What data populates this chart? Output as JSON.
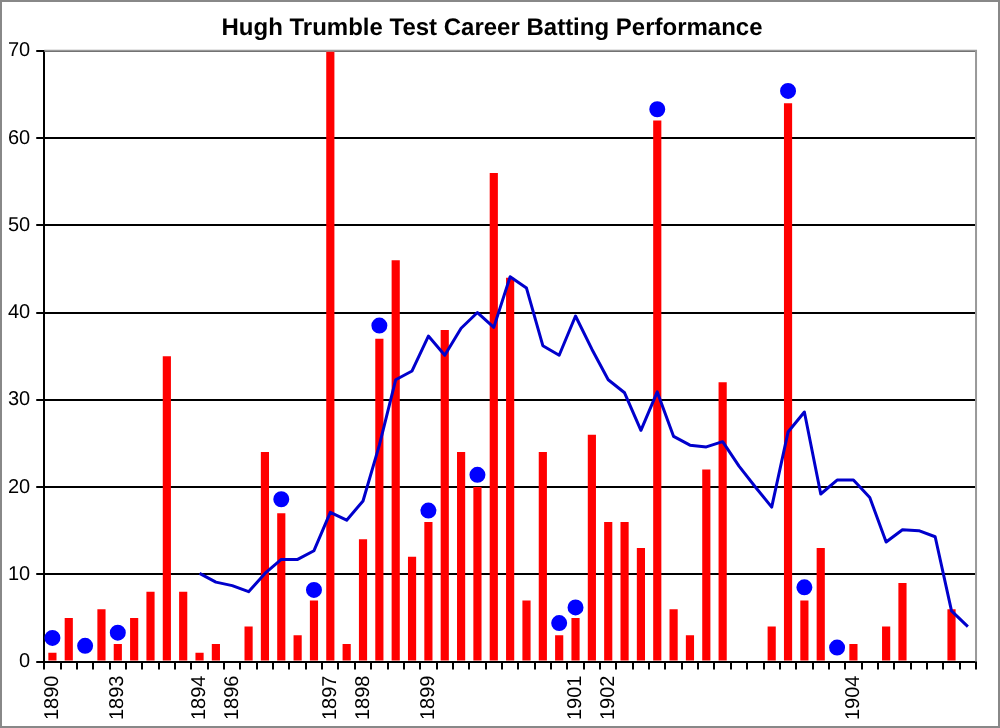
{
  "chart_data": {
    "type": "bar",
    "title": "Hugh Trumble Test Career Batting Performance",
    "categories": [
      "1890",
      null,
      null,
      null,
      "1893",
      null,
      null,
      null,
      null,
      "1894",
      null,
      "1896",
      null,
      null,
      null,
      null,
      null,
      "1897",
      null,
      "1898",
      null,
      null,
      null,
      "1899",
      null,
      null,
      null,
      null,
      null,
      null,
      null,
      null,
      "1901",
      null,
      "1902",
      null,
      null,
      null,
      null,
      null,
      null,
      null,
      null,
      null,
      null,
      null,
      null,
      null,
      null,
      "1904",
      null,
      null,
      null,
      null,
      null,
      null,
      null
    ],
    "ylim": [
      0,
      70
    ],
    "yticks": [
      0,
      10,
      20,
      30,
      40,
      50,
      60,
      70
    ],
    "grid": "y",
    "series": [
      {
        "color": "#ff0000",
        "values": [
          1,
          5,
          null,
          6,
          2,
          5,
          8,
          35,
          8,
          1,
          2,
          null,
          4,
          24,
          17,
          3,
          7,
          70,
          2,
          14,
          37,
          46,
          12,
          16,
          38,
          24,
          20,
          56,
          44,
          7,
          24,
          3,
          5,
          26,
          16,
          16,
          13,
          62,
          6,
          3,
          22,
          32,
          null,
          null,
          4,
          64,
          7,
          13,
          null,
          2,
          null,
          4,
          9,
          null,
          null,
          6,
          null
        ]
      },
      {
        "type": "line",
        "color": "#0000cc",
        "marker": "none",
        "values": [
          null,
          null,
          null,
          null,
          null,
          null,
          null,
          null,
          null,
          10.1,
          9.1,
          8.7,
          8,
          10.1,
          11.7,
          11.7,
          12.7,
          17.1,
          16.2,
          18.4,
          24.8,
          32.3,
          33.3,
          37.3,
          35.1,
          38.2,
          40,
          38.3,
          44.1,
          42.8,
          36.2,
          35.1,
          39.6,
          35.8,
          32.3,
          30.8,
          26.5,
          30.9,
          25.8,
          24.8,
          24.6,
          25.2,
          22.4,
          20,
          17.7,
          26.3,
          28.6,
          19.2,
          20.8,
          20.8,
          18.8,
          13.7,
          15.1,
          15,
          14.3,
          5.8,
          4
        ]
      },
      {
        "type": "scatter",
        "color": "#0000ff",
        "marker": "circle",
        "values": [
          2.7,
          null,
          1.8,
          null,
          3.3,
          null,
          null,
          null,
          null,
          null,
          null,
          null,
          null,
          null,
          18.6,
          null,
          8.2,
          null,
          null,
          null,
          38.5,
          null,
          null,
          17.3,
          null,
          null,
          21.4,
          null,
          null,
          null,
          null,
          4.4,
          6.2,
          null,
          null,
          null,
          null,
          63.3,
          null,
          null,
          null,
          null,
          null,
          null,
          null,
          65.4,
          8.5,
          null,
          1.6,
          null,
          null,
          null,
          null,
          null,
          null,
          null,
          null
        ]
      }
    ]
  }
}
